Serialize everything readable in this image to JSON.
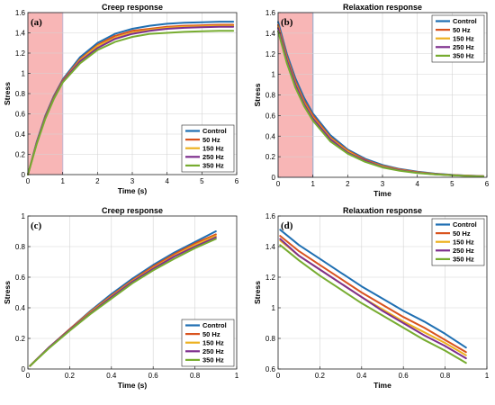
{
  "figure": {
    "background": "#ffffff"
  },
  "series_colors": [
    "#1f6fb2",
    "#d9531e",
    "#edb120",
    "#7e2f8e",
    "#77ac30"
  ],
  "chart_data": [
    {
      "id": "a",
      "tag": "(a)",
      "type": "line",
      "title": "Creep response",
      "xlabel": "Time (s)",
      "ylabel": "Stress",
      "xlim": [
        0,
        6
      ],
      "ylim": [
        0,
        1.6
      ],
      "xticks": [
        0,
        1,
        2,
        3,
        4,
        5,
        6
      ],
      "yticks": [
        0,
        0.2,
        0.4,
        0.6,
        0.8,
        1,
        1.2,
        1.4,
        1.6
      ],
      "grid": true,
      "legend_position": "bottom-right",
      "highlight": {
        "x0": 0,
        "x1": 1,
        "color": "#f8b6b6",
        "edge": "#b080c0"
      },
      "x": [
        0,
        0.25,
        0.5,
        0.75,
        1,
        1.5,
        2,
        2.5,
        3,
        3.5,
        4,
        4.5,
        5,
        5.5,
        5.9
      ],
      "series": [
        {
          "name": "Control",
          "values": [
            0,
            0.32,
            0.58,
            0.78,
            0.94,
            1.16,
            1.3,
            1.39,
            1.44,
            1.47,
            1.49,
            1.5,
            1.505,
            1.51,
            1.51
          ]
        },
        {
          "name": "50 Hz",
          "values": [
            0,
            0.31,
            0.57,
            0.77,
            0.93,
            1.14,
            1.28,
            1.37,
            1.42,
            1.44,
            1.46,
            1.47,
            1.475,
            1.48,
            1.48
          ]
        },
        {
          "name": "150 Hz",
          "values": [
            0,
            0.31,
            0.56,
            0.76,
            0.92,
            1.13,
            1.27,
            1.35,
            1.4,
            1.43,
            1.45,
            1.46,
            1.465,
            1.47,
            1.47
          ]
        },
        {
          "name": "250 Hz",
          "values": [
            0,
            0.31,
            0.56,
            0.76,
            0.92,
            1.12,
            1.25,
            1.34,
            1.39,
            1.42,
            1.44,
            1.45,
            1.455,
            1.46,
            1.46
          ]
        },
        {
          "name": "350 Hz",
          "values": [
            0,
            0.3,
            0.55,
            0.75,
            0.91,
            1.1,
            1.23,
            1.31,
            1.36,
            1.39,
            1.4,
            1.41,
            1.415,
            1.42,
            1.42
          ]
        }
      ]
    },
    {
      "id": "b",
      "tag": "(b)",
      "type": "line",
      "title": "Relaxation response",
      "xlabel": "Time",
      "ylabel": "Stress",
      "xlim": [
        0,
        6
      ],
      "ylim": [
        0,
        1.6
      ],
      "xticks": [
        0,
        1,
        2,
        3,
        4,
        5,
        6
      ],
      "yticks": [
        0,
        0.2,
        0.4,
        0.6,
        0.8,
        1,
        1.2,
        1.4,
        1.6
      ],
      "grid": true,
      "legend_position": "top-right",
      "highlight": {
        "x0": 0,
        "x1": 1,
        "color": "#f8b6b6",
        "edge": "#4060b0"
      },
      "x": [
        0,
        0.25,
        0.5,
        0.75,
        1,
        1.5,
        2,
        2.5,
        3,
        3.5,
        4,
        4.5,
        5,
        5.5,
        5.9
      ],
      "series": [
        {
          "name": "Control",
          "values": [
            1.51,
            1.2,
            0.96,
            0.77,
            0.62,
            0.41,
            0.27,
            0.18,
            0.12,
            0.08,
            0.055,
            0.036,
            0.024,
            0.016,
            0.012
          ]
        },
        {
          "name": "50 Hz",
          "values": [
            1.48,
            1.17,
            0.93,
            0.74,
            0.6,
            0.39,
            0.26,
            0.17,
            0.11,
            0.075,
            0.05,
            0.033,
            0.022,
            0.015,
            0.011
          ]
        },
        {
          "name": "150 Hz",
          "values": [
            1.46,
            1.15,
            0.91,
            0.72,
            0.58,
            0.38,
            0.25,
            0.16,
            0.105,
            0.07,
            0.047,
            0.031,
            0.021,
            0.014,
            0.01
          ]
        },
        {
          "name": "250 Hz",
          "values": [
            1.45,
            1.14,
            0.9,
            0.71,
            0.57,
            0.37,
            0.24,
            0.16,
            0.1,
            0.068,
            0.045,
            0.03,
            0.02,
            0.013,
            0.01
          ]
        },
        {
          "name": "350 Hz",
          "values": [
            1.42,
            1.11,
            0.87,
            0.69,
            0.55,
            0.35,
            0.23,
            0.15,
            0.095,
            0.063,
            0.042,
            0.028,
            0.019,
            0.012,
            0.009
          ]
        }
      ]
    },
    {
      "id": "c",
      "tag": "(c)",
      "type": "line",
      "title": "Creep response",
      "xlabel": "Time (s)",
      "ylabel": "Stress",
      "xlim": [
        0,
        1
      ],
      "ylim": [
        0,
        1
      ],
      "xticks": [
        0,
        0.2,
        0.4,
        0.6,
        0.8,
        1
      ],
      "yticks": [
        0,
        0.2,
        0.4,
        0.6,
        0.8,
        1
      ],
      "grid": true,
      "legend_position": "bottom-right",
      "x": [
        0.01,
        0.1,
        0.2,
        0.3,
        0.4,
        0.5,
        0.6,
        0.7,
        0.8,
        0.9
      ],
      "series": [
        {
          "name": "Control",
          "values": [
            0.02,
            0.14,
            0.26,
            0.38,
            0.49,
            0.59,
            0.68,
            0.76,
            0.83,
            0.9
          ]
        },
        {
          "name": "50 Hz",
          "values": [
            0.02,
            0.14,
            0.26,
            0.375,
            0.48,
            0.58,
            0.67,
            0.75,
            0.82,
            0.88
          ]
        },
        {
          "name": "150 Hz",
          "values": [
            0.02,
            0.14,
            0.255,
            0.37,
            0.475,
            0.575,
            0.66,
            0.74,
            0.81,
            0.87
          ]
        },
        {
          "name": "250 Hz",
          "values": [
            0.02,
            0.14,
            0.255,
            0.365,
            0.47,
            0.57,
            0.655,
            0.735,
            0.8,
            0.86
          ]
        },
        {
          "name": "350 Hz",
          "values": [
            0.02,
            0.135,
            0.25,
            0.36,
            0.46,
            0.56,
            0.645,
            0.72,
            0.79,
            0.85
          ]
        }
      ]
    },
    {
      "id": "d",
      "tag": "(d)",
      "type": "line",
      "title": "Relaxation response",
      "xlabel": "Time",
      "ylabel": "Stress",
      "xlim": [
        0,
        1
      ],
      "ylim": [
        0.6,
        1.6
      ],
      "xticks": [
        0,
        0.2,
        0.4,
        0.6,
        0.8,
        1
      ],
      "yticks": [
        0.6,
        0.8,
        1,
        1.2,
        1.4,
        1.6
      ],
      "grid": true,
      "legend_position": "top-right",
      "x": [
        0.01,
        0.1,
        0.2,
        0.3,
        0.4,
        0.5,
        0.6,
        0.7,
        0.8,
        0.9
      ],
      "series": [
        {
          "name": "Control",
          "values": [
            1.51,
            1.41,
            1.32,
            1.23,
            1.14,
            1.06,
            0.98,
            0.91,
            0.83,
            0.74
          ]
        },
        {
          "name": "50 Hz",
          "values": [
            1.47,
            1.37,
            1.28,
            1.19,
            1.1,
            1.02,
            0.94,
            0.87,
            0.79,
            0.71
          ]
        },
        {
          "name": "150 Hz",
          "values": [
            1.44,
            1.34,
            1.25,
            1.16,
            1.07,
            0.99,
            0.91,
            0.84,
            0.77,
            0.69
          ]
        },
        {
          "name": "250 Hz",
          "values": [
            1.45,
            1.34,
            1.25,
            1.16,
            1.07,
            0.98,
            0.9,
            0.82,
            0.75,
            0.67
          ]
        },
        {
          "name": "350 Hz",
          "values": [
            1.41,
            1.31,
            1.21,
            1.12,
            1.03,
            0.95,
            0.87,
            0.79,
            0.72,
            0.64
          ]
        }
      ]
    }
  ]
}
